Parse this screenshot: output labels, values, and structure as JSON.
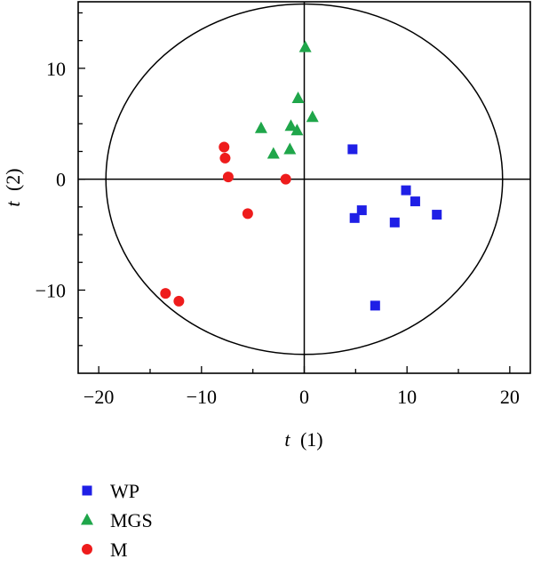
{
  "chart_data": {
    "type": "scatter",
    "title": "",
    "xlabel": {
      "var": "t",
      "idx": "(1)"
    },
    "ylabel": {
      "var": "t",
      "idx": "(2)"
    },
    "xlim": [
      -22,
      22
    ],
    "ylim": [
      -17.5,
      16
    ],
    "x_ticks": [
      -20,
      -10,
      0,
      10,
      20
    ],
    "x_tick_labels": [
      "−20",
      "−10",
      "0",
      "10",
      "20"
    ],
    "y_ticks": [
      -10,
      0,
      10
    ],
    "y_tick_labels": [
      "−10",
      "0",
      "10"
    ],
    "grid": false,
    "legend_position": "bottom-left",
    "ellipse": {
      "cx": 0,
      "cy": 0,
      "rx": 19.3,
      "ry": 15.8
    },
    "series": [
      {
        "name": "WP",
        "marker": "square",
        "color": "#1f1fe6",
        "points": [
          [
            4.7,
            2.7
          ],
          [
            9.9,
            -1.0
          ],
          [
            10.8,
            -2.0
          ],
          [
            5.6,
            -2.8
          ],
          [
            4.9,
            -3.5
          ],
          [
            12.9,
            -3.2
          ],
          [
            8.8,
            -3.9
          ],
          [
            6.9,
            -11.4
          ]
        ]
      },
      {
        "name": "MGS",
        "marker": "triangle",
        "color": "#1fa64a",
        "points": [
          [
            0.1,
            11.9
          ],
          [
            -0.6,
            7.3
          ],
          [
            0.8,
            5.6
          ],
          [
            -4.2,
            4.6
          ],
          [
            -1.3,
            4.8
          ],
          [
            -0.7,
            4.4
          ],
          [
            -1.4,
            2.7
          ],
          [
            -3.0,
            2.3
          ]
        ]
      },
      {
        "name": "M",
        "marker": "circle",
        "color": "#ee1c1c",
        "points": [
          [
            -7.8,
            2.9
          ],
          [
            -7.7,
            1.9
          ],
          [
            -7.4,
            0.2
          ],
          [
            -1.8,
            0.0
          ],
          [
            -5.5,
            -3.1
          ],
          [
            -13.5,
            -10.3
          ],
          [
            -12.2,
            -11.0
          ]
        ]
      }
    ]
  }
}
